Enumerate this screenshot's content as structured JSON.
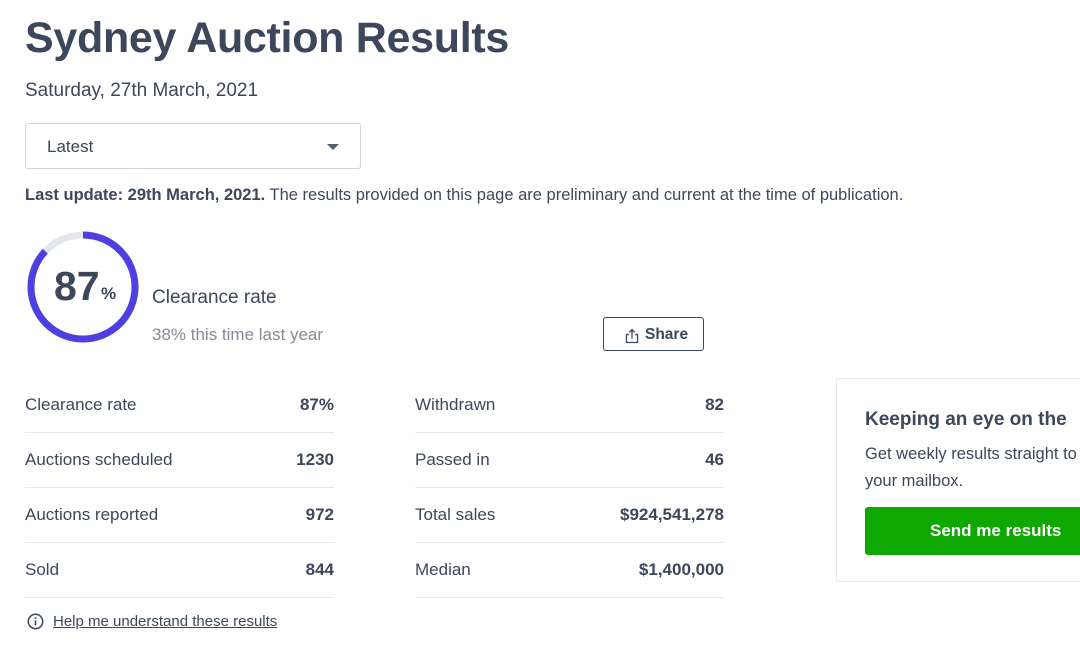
{
  "page": {
    "title": "Sydney Auction Results",
    "date": "Saturday, 27th March, 2021"
  },
  "filter": {
    "selected": "Latest",
    "icon": "chevron-down-icon"
  },
  "update": {
    "bold": "Last update: 29th March, 2021.",
    "text": " The results provided on this page are preliminary and current at the time of publication."
  },
  "clearance": {
    "value": "87",
    "unit": "%",
    "fraction": 0.87,
    "label": "Clearance rate",
    "last_year": "38% this time last year",
    "ring_color": "#4e3fe0",
    "ring_track_color": "#e4e7eb"
  },
  "share": {
    "label": "Share",
    "icon": "share-icon"
  },
  "stats": {
    "left": [
      {
        "label": "Clearance rate",
        "value": "87%"
      },
      {
        "label": "Auctions scheduled",
        "value": "1230"
      },
      {
        "label": "Auctions reported",
        "value": "972"
      },
      {
        "label": "Sold",
        "value": "844"
      }
    ],
    "right": [
      {
        "label": "Withdrawn",
        "value": "82"
      },
      {
        "label": "Passed in",
        "value": "46"
      },
      {
        "label": "Total sales",
        "value": "$924,541,278"
      },
      {
        "label": "Median",
        "value": "$1,400,000"
      }
    ]
  },
  "help": {
    "label": "Help me understand these results",
    "icon": "info-icon"
  },
  "promo": {
    "title": "Keeping an eye on the",
    "body": "Get weekly results straight to your mailbox.",
    "button": "Send me results",
    "button_color": "#0ea800"
  }
}
